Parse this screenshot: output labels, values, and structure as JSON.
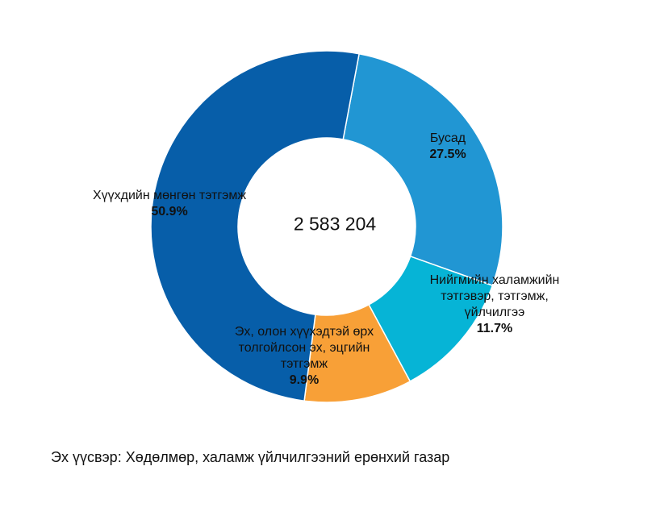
{
  "chart_data": {
    "type": "donut",
    "categories": [
      "Бусад",
      "Нийгмийн халамжийн тэтгэвэр, тэтгэмж, үйлчилгээ",
      "Эх, олон хүүхэдтэй өрх толгойлсон эх, эцгийн тэтгэмж",
      "Хүүхдийн мөнгөн тэтгэмж"
    ],
    "values": [
      27.5,
      11.7,
      9.9,
      50.9
    ],
    "value_labels": [
      "27.5%",
      "11.7%",
      "9.9%",
      "50.9%"
    ],
    "colors": [
      "#2196d3",
      "#06b4d6",
      "#f8a037",
      "#075ea9"
    ],
    "center_label": "2 583 204",
    "source": "Эх үүсвэр:  Хөдөлмөр, халамж үйлчилгээний ерөнхий газар"
  }
}
